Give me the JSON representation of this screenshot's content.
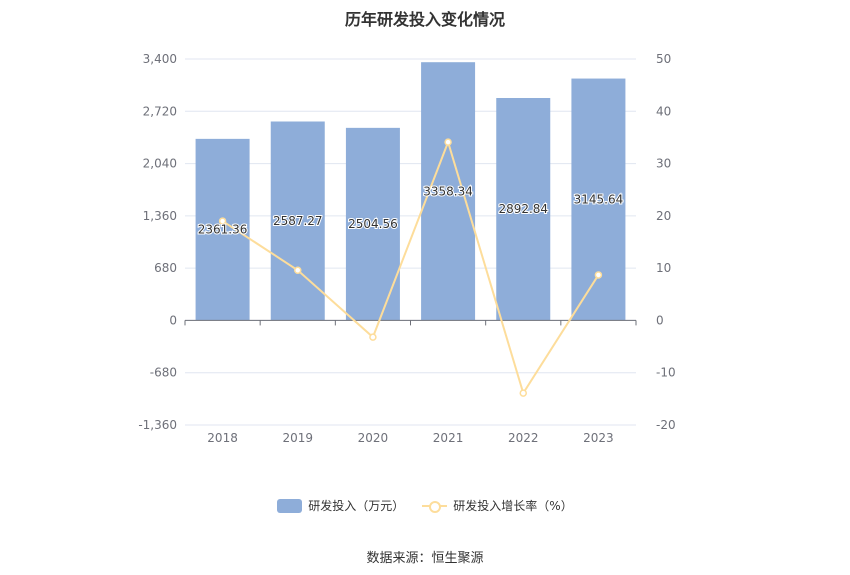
{
  "chart_data": {
    "type": "bar",
    "title": "历年研发投入变化情况",
    "categories": [
      "2018",
      "2019",
      "2020",
      "2021",
      "2022",
      "2023"
    ],
    "series": [
      {
        "name": "研发投入（万元）",
        "type": "bar",
        "axis": "left",
        "color": "#8eadd9",
        "values": [
          2361.36,
          2587.27,
          2504.56,
          3358.34,
          2892.84,
          3145.64
        ],
        "labels": [
          "2361.36",
          "2587.27",
          "2504.56",
          "3358.34",
          "2892.84",
          "3145.64"
        ]
      },
      {
        "name": "研发投入增长率（%）",
        "type": "line",
        "axis": "right",
        "color": "#fddd9b",
        "values": [
          19,
          9.6,
          -3.2,
          34.1,
          -13.9,
          8.7
        ]
      }
    ],
    "y_left": {
      "ylim": [
        -1360,
        3400
      ],
      "ticks": [
        3400,
        2720,
        2040,
        1360,
        680,
        0,
        -680,
        -1360
      ],
      "tick_labels": [
        "3,400",
        "2,720",
        "2,040",
        "1,360",
        "680",
        "0",
        "-680",
        "-1,360"
      ]
    },
    "y_right": {
      "ylim": [
        -20,
        50
      ],
      "ticks": [
        50,
        40,
        30,
        20,
        10,
        0,
        -10,
        -20
      ],
      "tick_labels": [
        "50",
        "40",
        "30",
        "20",
        "10",
        "0",
        "-10",
        "-20"
      ]
    },
    "grid": true,
    "legend_position": "bottom"
  },
  "source": "数据来源：恒生聚源"
}
